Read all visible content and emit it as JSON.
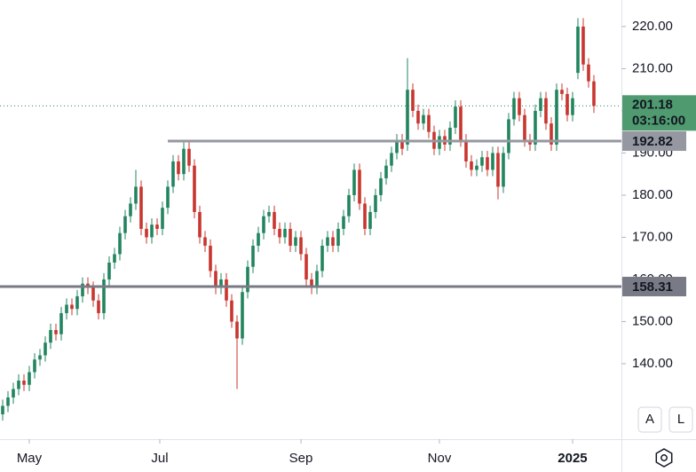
{
  "chart_data": {
    "type": "candlestick",
    "open": [
      128,
      130,
      132,
      134,
      136,
      135,
      138,
      141,
      142,
      145,
      148,
      147,
      152,
      154,
      153,
      156,
      159,
      158,
      155,
      152,
      160,
      164,
      166,
      171,
      175,
      178,
      182,
      172,
      170,
      173,
      172,
      177,
      182,
      188,
      185,
      191,
      187,
      176,
      170,
      168,
      162,
      158,
      160,
      155,
      150,
      146,
      157,
      163,
      168,
      171,
      175,
      176,
      172,
      170,
      172,
      168,
      170,
      166,
      160,
      158,
      162,
      168,
      170,
      168,
      172,
      175,
      180,
      186,
      178,
      172,
      176,
      180,
      184,
      187,
      190,
      193,
      192,
      205,
      200,
      197,
      199,
      195,
      191,
      194,
      192,
      196,
      201,
      193,
      188,
      186,
      187,
      189,
      186,
      190,
      182,
      190,
      198,
      203,
      199,
      193,
      192,
      200,
      203,
      197,
      192,
      205,
      204,
      199,
      209,
      220,
      211,
      207
    ],
    "high": [
      131.5,
      133.5,
      135.5,
      137.5,
      137.5,
      139.5,
      142.5,
      143.5,
      146.5,
      149.5,
      149.5,
      153.5,
      155.5,
      155.5,
      157.5,
      160.5,
      160.5,
      159.5,
      156.5,
      161.5,
      165.5,
      167.5,
      172.5,
      176.5,
      179.5,
      186,
      183.5,
      173.5,
      174.5,
      174.5,
      178.5,
      183.5,
      189.5,
      189.5,
      192.5,
      192.5,
      188.5,
      177.5,
      171.5,
      169.5,
      163.5,
      161.5,
      161.5,
      156.5,
      151.5,
      158.5,
      164.5,
      169.5,
      172.5,
      176.5,
      177.5,
      177.5,
      173.5,
      173.5,
      173.5,
      171.5,
      171.5,
      167.5,
      161.5,
      163.5,
      169.5,
      171.5,
      171.5,
      173.5,
      176.5,
      181.5,
      187.5,
      187.5,
      179.5,
      177.5,
      181.5,
      185.5,
      188.5,
      191.5,
      194.5,
      194.5,
      212.5,
      206.5,
      201.5,
      200.5,
      200.5,
      196.5,
      195.5,
      195.5,
      197.5,
      202.5,
      202.5,
      194.5,
      189.5,
      188.5,
      190.5,
      190.5,
      191.5,
      191.5,
      191.5,
      199.5,
      204.5,
      204.5,
      200.5,
      194.5,
      201.5,
      204.5,
      204.5,
      198.5,
      206.5,
      206.5,
      205.5,
      204.5,
      222,
      222,
      212.5,
      208.5
    ],
    "low": [
      126.5,
      128.5,
      130.5,
      132.5,
      133.5,
      133.5,
      136.5,
      139.5,
      140.5,
      143.5,
      145.5,
      145.5,
      150.5,
      151.5,
      151.5,
      154.5,
      156.5,
      153.5,
      150.5,
      150.5,
      158.5,
      162.5,
      164.5,
      169.5,
      173.5,
      176.5,
      170.5,
      168.5,
      168.5,
      170.5,
      170.5,
      175.5,
      180.5,
      183.5,
      183.5,
      185.5,
      174.5,
      168.5,
      166.5,
      160.5,
      156.5,
      156.5,
      153.5,
      148.5,
      134,
      144.5,
      155.5,
      161.5,
      166.5,
      169.5,
      173.5,
      170.5,
      168.5,
      168.5,
      166.5,
      166.5,
      164.5,
      158.5,
      156.5,
      156.5,
      160.5,
      166.5,
      166.5,
      166.5,
      170.5,
      173.5,
      178.5,
      176.5,
      170.5,
      170.5,
      174.5,
      178.5,
      182.5,
      185.5,
      188.5,
      189.5,
      190.5,
      198.5,
      195.5,
      195.5,
      193.5,
      189.5,
      189.5,
      190.5,
      190.5,
      194.5,
      191.5,
      186.5,
      184.5,
      184.5,
      185.5,
      184.5,
      184.5,
      179,
      180.5,
      188.5,
      196.5,
      197.5,
      191.5,
      190.5,
      190.5,
      198.5,
      195.5,
      190.5,
      190.5,
      202.5,
      197.5,
      197.5,
      207.5,
      209.5,
      205.5,
      199.5
    ],
    "close": [
      130,
      132,
      134,
      136,
      135,
      138,
      141,
      142,
      145,
      148,
      147,
      152,
      154,
      153,
      156,
      159,
      158,
      155,
      152,
      160,
      164,
      166,
      171,
      175,
      178,
      182,
      172,
      170,
      173,
      172,
      177,
      182,
      188,
      185,
      191,
      187,
      176,
      170,
      168,
      162,
      158,
      160,
      155,
      150,
      146,
      157,
      163,
      168,
      171,
      175,
      176,
      172,
      170,
      172,
      168,
      170,
      166,
      160,
      158,
      162,
      168,
      170,
      168,
      172,
      175,
      180,
      186,
      178,
      172,
      176,
      180,
      184,
      187,
      190,
      193,
      191,
      205,
      200,
      197,
      199,
      195,
      191,
      194,
      192,
      196,
      201,
      193,
      188,
      186,
      187,
      189,
      186,
      190,
      182,
      190,
      198,
      203,
      199,
      193,
      192,
      200,
      203,
      197,
      192,
      205,
      204,
      199,
      203,
      220,
      211,
      207,
      201.18
    ],
    "up_color": "#22855f",
    "down_color": "#c8362f",
    "xlim": [
      -0.5,
      116.17
    ],
    "xticks": [
      {
        "value": 5,
        "label": "May"
      },
      {
        "value": 29.5,
        "label": "Jul"
      },
      {
        "value": 56,
        "label": "Sep"
      },
      {
        "value": 82,
        "label": "Nov"
      },
      {
        "value": 107,
        "label": "2025"
      }
    ],
    "ylim": [
      122.1,
      226.3
    ],
    "yticks": [
      {
        "value": 140,
        "label": "140.00"
      },
      {
        "value": 150,
        "label": "150.00"
      },
      {
        "value": 160,
        "label": "160.00"
      },
      {
        "value": 170,
        "label": "170.00"
      },
      {
        "value": 180,
        "label": "180.00"
      },
      {
        "value": 190,
        "label": "190.00"
      },
      {
        "value": 200,
        "label": "200.00"
      },
      {
        "value": 210,
        "label": "210.00"
      },
      {
        "value": 220,
        "label": "220.00"
      }
    ],
    "levels": [
      {
        "value": 192.82,
        "from": 31
      },
      {
        "value": 158.31,
        "from": -0.5
      }
    ],
    "last_price": 201.18,
    "countdown": "03:16:00",
    "buttons": [
      "A",
      "L"
    ]
  }
}
